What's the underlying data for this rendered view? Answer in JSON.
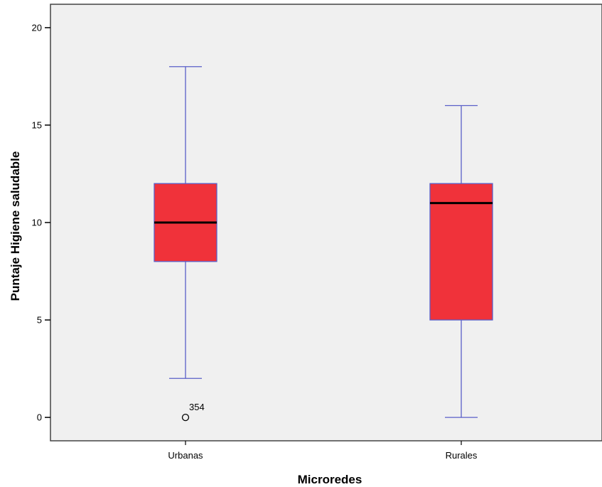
{
  "chart_data": {
    "type": "boxplot",
    "title": "",
    "xlabel": "Microredes",
    "ylabel": "Puntaje Higiene saludable",
    "ylim": [
      -1.2,
      21.2
    ],
    "yticks": [
      0,
      5,
      10,
      15,
      20
    ],
    "ytick_labels": [
      "0",
      "5",
      "10",
      "15",
      "20"
    ],
    "grid": false,
    "categories": [
      "Urbanas",
      "Rurales"
    ],
    "boxes": [
      {
        "category": "Urbanas",
        "whisker_low": 2,
        "q1": 8,
        "median": 10,
        "q3": 12,
        "whisker_high": 18,
        "outliers": [
          {
            "value": 0,
            "label": "354"
          }
        ]
      },
      {
        "category": "Rurales",
        "whisker_low": 0,
        "q1": 5,
        "median": 11,
        "q3": 12,
        "whisker_high": 16,
        "outliers": []
      }
    ],
    "colors": {
      "plot_background": "#f0f0f0",
      "box_fill": "#f0323a",
      "box_edge": "#5a5fc8",
      "whisker": "#5a5fc8",
      "median": "#000000",
      "frame": "#444444"
    }
  }
}
